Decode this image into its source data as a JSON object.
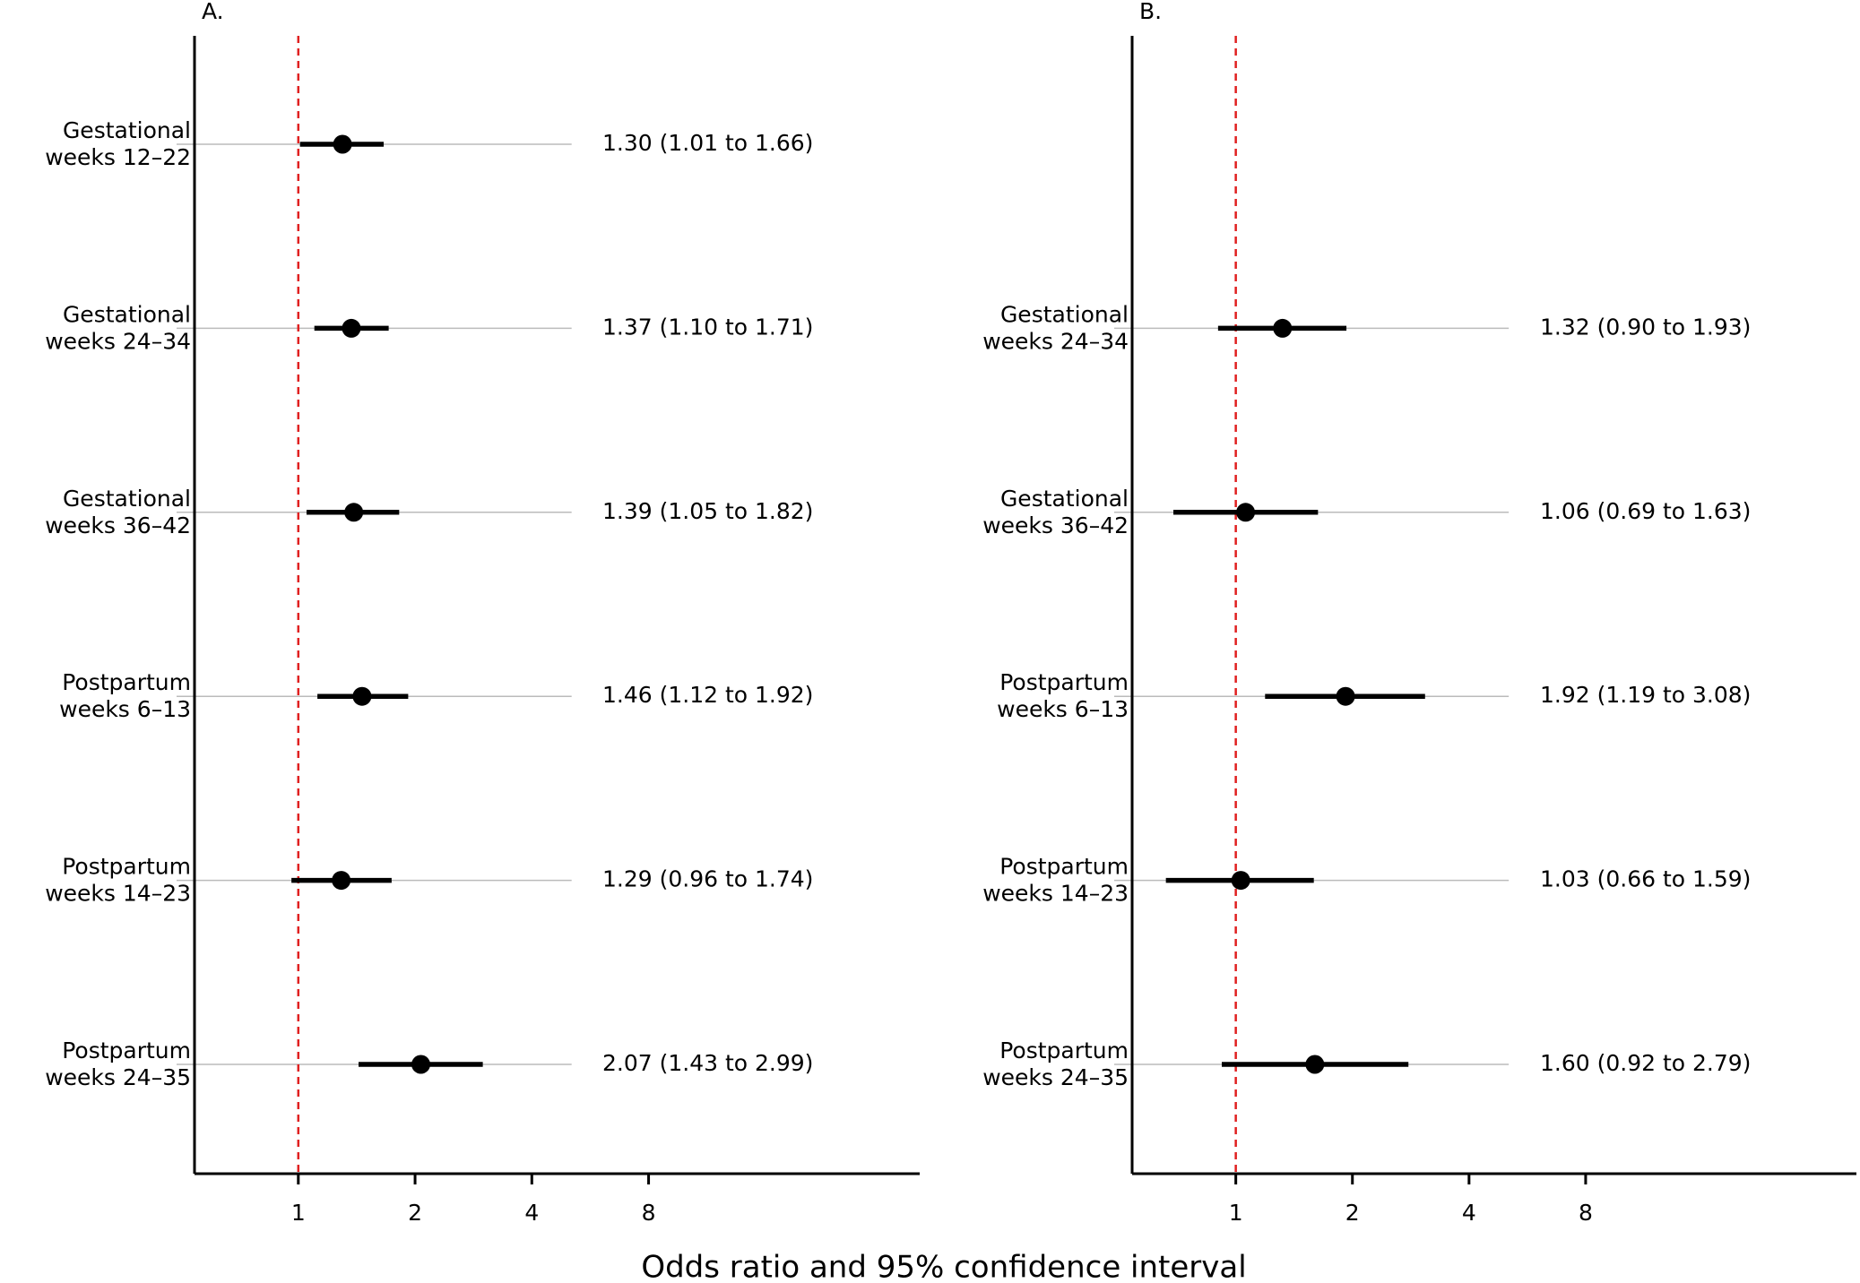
{
  "chart_data": [
    {
      "type": "forest",
      "title": "A.",
      "log_base": 2,
      "categories": [
        [
          "Gestational",
          "weeks 12–22"
        ],
        [
          "Gestational",
          "weeks 24–34"
        ],
        [
          "Gestational",
          "weeks 36–42"
        ],
        [
          "Postpartum",
          "weeks 6–13"
        ],
        [
          "Postpartum",
          "weeks 14–23"
        ],
        [
          "Postpartum",
          "weeks 24–35"
        ]
      ],
      "values": [
        1.3,
        1.37,
        1.39,
        1.46,
        1.29,
        2.07
      ],
      "lower": [
        1.01,
        1.1,
        1.05,
        1.12,
        0.96,
        1.43
      ],
      "upper": [
        1.66,
        1.71,
        1.82,
        1.92,
        1.74,
        2.99
      ],
      "value_labels": [
        "1.30 (1.01 to 1.66)",
        "1.37 (1.10 to 1.71)",
        "1.39 (1.05 to 1.82)",
        "1.46 (1.12 to 1.92)",
        "1.29 (0.96 to 1.74)",
        "2.07 (1.43 to 2.99)"
      ],
      "xlim": [
        0.54,
        40
      ],
      "xticks": [
        1,
        2,
        4,
        8
      ],
      "reference": 1,
      "reference_color": "#e02020",
      "color": "#000000"
    },
    {
      "type": "forest",
      "title": "B.",
      "log_base": 2,
      "categories": [
        null,
        [
          "Gestational",
          "weeks 24–34"
        ],
        [
          "Gestational",
          "weeks 36–42"
        ],
        [
          "Postpartum",
          "weeks 6–13"
        ],
        [
          "Postpartum",
          "weeks 14–23"
        ],
        [
          "Postpartum",
          "weeks 24–35"
        ]
      ],
      "values": [
        null,
        1.32,
        1.06,
        1.92,
        1.03,
        1.6
      ],
      "lower": [
        null,
        0.9,
        0.69,
        1.19,
        0.66,
        0.92
      ],
      "upper": [
        null,
        1.93,
        1.63,
        3.08,
        1.59,
        2.79
      ],
      "value_labels": [
        null,
        "1.32 (0.90 to 1.93)",
        "1.06 (0.69 to 1.63)",
        "1.92 (1.19 to 3.08)",
        "1.03 (0.66 to 1.59)",
        "1.60 (0.92 to 2.79)"
      ],
      "xlim": [
        0.54,
        40
      ],
      "xticks": [
        1,
        2,
        4,
        8
      ],
      "reference": 1,
      "reference_color": "#e02020",
      "color": "#000000"
    }
  ],
  "xlabel": "Odds ratio and 95% confidence interval"
}
